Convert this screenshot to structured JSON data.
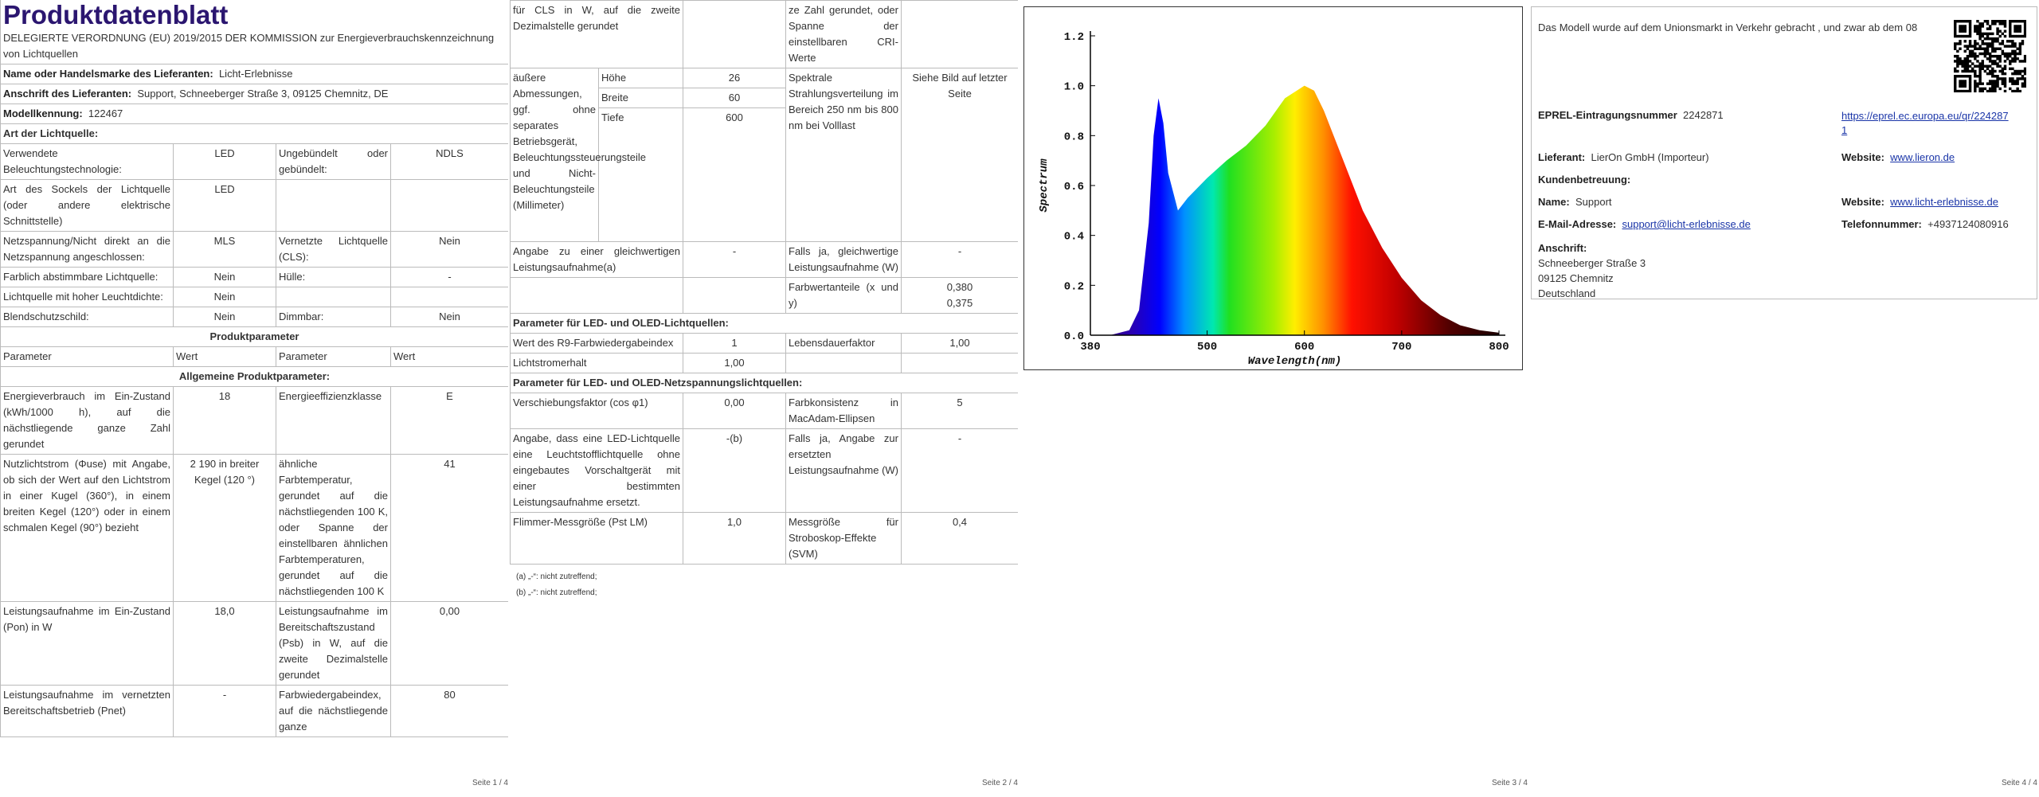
{
  "page1": {
    "title": "Produktdatenblatt",
    "regulation": "DELEGIERTE VERORDNUNG (EU) 2019/2015 DER KOMMISSION zur Energieverbrauchskennzeichnung von Lichtquellen",
    "supplier": {
      "label": "Name oder Handelsmarke des Lieferanten:",
      "value": "Licht-Erlebnisse"
    },
    "address": {
      "label": "Anschrift des Lieferanten:",
      "value": "Support, Schneeberger Straße 3, 09125 Chemnitz, DE"
    },
    "model": {
      "label": "Modellkennung:",
      "value": "122467"
    },
    "source_heading": "Art der Lichtquelle:",
    "source_rows": [
      [
        "Verwendete Beleuchtungstechnologie:",
        "LED",
        "Ungebündelt oder gebündelt:",
        "NDLS"
      ],
      [
        "Art des Sockels der Lichtquelle (oder andere elektrische Schnittstelle)",
        "LED",
        null,
        null
      ],
      [
        "Netzspannung/Nicht direkt an die Netzspannung angeschlossen:",
        "MLS",
        "Vernetzte Lichtquelle (CLS):",
        "Nein"
      ],
      [
        "Farblich abstimmbare Lichtquelle:",
        "Nein",
        "Hülle:",
        "-"
      ],
      [
        "Lichtquelle mit hoher Leuchtdichte:",
        "Nein",
        null,
        null
      ],
      [
        "Blendschutzschild:",
        "Nein",
        "Dimmbar:",
        "Nein"
      ]
    ],
    "params_heading": "Produktparameter",
    "header": [
      "Parameter",
      "Wert",
      "Parameter",
      "Wert"
    ],
    "general_heading": "Allgemeine Produktparameter:",
    "general_rows": [
      [
        "Energieverbrauch im Ein-Zustand (kWh/1000 h), auf die nächstliegende ganze Zahl gerundet",
        "18",
        "Energieeffizienzklasse",
        "E"
      ],
      [
        "Nutzlichtstrom (Φuse) mit Angabe, ob sich der Wert auf den Lichtstrom in einer Kugel (360°), in einem breiten Kegel (120°) oder in einem schmalen Kegel (90°) bezieht",
        "2 190 in breiter Kegel (120 °)",
        "ähnliche Farbtemperatur, gerundet auf die nächstliegenden 100 K, oder Spanne der einstellbaren ähnlichen Farbtemperaturen, gerundet auf die nächstliegenden 100 K",
        "41"
      ],
      [
        "Leistungsaufnahme im Ein-Zustand (Pon) in W",
        "18,0",
        "Leistungsaufnahme im Bereitschaftszustand (Psb) in W, auf die zweite Dezimalstelle gerundet",
        "0,00"
      ],
      [
        "Leistungsaufnahme im vernetzten Bereitschaftsbetrieb (Pnet)",
        "-",
        "Farbwiedergabeindex, auf die nächstliegende ganze",
        "80"
      ]
    ],
    "page_number": "Seite 1 / 4"
  },
  "page2": {
    "top_row": [
      "für CLS in W, auf die zweite Dezimalstelle gerundet",
      null,
      "ze Zahl gerundet, oder Spanne der einstellbaren CRI-Werte",
      null
    ],
    "dimensions": {
      "label": "äußere Abmessungen, ggf. ohne separates Betriebsgerät, Beleuchtungssteuerungsteile und Nicht-Beleuchtungsteile (Millimeter)",
      "rows": [
        [
          "Höhe",
          "26"
        ],
        [
          "Breite",
          "60"
        ],
        [
          "Tiefe",
          "600"
        ]
      ],
      "spectrum_label": "Spektrale Strahlungsverteilung im Bereich 250 nm bis 800 nm bei Volllast",
      "spectrum_value": "Siehe Bild auf letzter Seite"
    },
    "rows": [
      [
        "Angabe zu einer gleichwertigen Leistungsaufnahme(a)",
        "-",
        "Falls ja, gleichwertige Leistungsaufnahme (W)",
        "-"
      ],
      [
        null,
        null,
        "Farbwertanteile (x und y)",
        "0,380\n0,375"
      ]
    ],
    "led_heading": "Parameter für LED- und OLED-Lichtquellen:",
    "led_rows": [
      [
        "Wert des R9-Farbwiedergabeindex",
        "1",
        "Lebensdauerfaktor",
        "1,00"
      ],
      [
        "Lichtstromerhalt",
        "1,00",
        null,
        null
      ]
    ],
    "mains_heading": "Parameter für LED- und OLED-Netzspannungslichtquellen:",
    "mains_rows": [
      [
        "Verschiebungsfaktor (cos φ1)",
        "0,00",
        "Farbkonsistenz in MacAdam-Ellipsen",
        "5"
      ],
      [
        "Angabe, dass eine LED-Lichtquelle eine Leuchtstofflichtquelle ohne eingebautes Vorschaltgerät mit einer bestimmten Leistungsaufnahme ersetzt.",
        "-(b)",
        "Falls ja, Angabe zur ersetzten Leistungsaufnahme (W)",
        "-"
      ],
      [
        "Flimmer-Messgröße (Pst LM)",
        "1,0",
        "Messgröße für Stroboskop-Effekte (SVM)",
        "0,4"
      ]
    ],
    "footnotes": [
      "(a) „-“: nicht zutreffend;",
      "(b) „-“: nicht zutreffend;"
    ],
    "page_number": "Seite 2 / 4"
  },
  "page3": {
    "chart_data": {
      "type": "area",
      "xlabel": "Wavelength(nm)",
      "ylabel": "Spectrum",
      "x": [
        400,
        420,
        430,
        440,
        445,
        450,
        455,
        460,
        470,
        480,
        500,
        520,
        540,
        560,
        580,
        600,
        610,
        620,
        640,
        660,
        680,
        700,
        720,
        740,
        760,
        780,
        800
      ],
      "values": [
        0,
        0.02,
        0.1,
        0.45,
        0.8,
        0.95,
        0.85,
        0.65,
        0.5,
        0.55,
        0.63,
        0.7,
        0.76,
        0.84,
        0.95,
        1.0,
        0.98,
        0.9,
        0.7,
        0.5,
        0.35,
        0.23,
        0.14,
        0.08,
        0.04,
        0.02,
        0.01
      ],
      "xlim": [
        380,
        800
      ],
      "ylim": [
        0,
        1.2
      ],
      "xticks": [
        380,
        500,
        600,
        700,
        800
      ],
      "yticks": [
        {
          "value": 0,
          "label": "0.0"
        },
        0.2,
        0.4,
        0.6,
        0.8,
        {
          "value": 1,
          "label": "1.0"
        },
        1.2
      ]
    },
    "page_number": "Seite 3 / 4"
  },
  "page4": {
    "intro": "Das Modell wurde auf dem Unionsmarkt in Verkehr gebracht , und zwar ab dem 08",
    "eprel": {
      "label": "EPREL-Eintragungsnummer",
      "value": "2242871",
      "link": "https://eprel.ec.europa.eu/qr/2242871"
    },
    "supplier": {
      "label": "Lieferant:",
      "value": "LierOn GmbH (Importeur)",
      "website_label": "Website:",
      "website": "www.lieron.de"
    },
    "service_heading": "Kundenbetreuung:",
    "name": {
      "label": "Name:",
      "value": "Support",
      "website_label": "Website:",
      "website": "www.licht-erlebnisse.de"
    },
    "email": {
      "label": "E-Mail-Adresse:",
      "value": "support@licht-erlebnisse.de",
      "phone_label": "Telefonnummer:",
      "phone": "+4937124080916"
    },
    "address": {
      "label": "Anschrift:",
      "lines": [
        "Schneeberger Straße 3",
        "09125 Chemnitz",
        "Deutschland"
      ]
    },
    "page_number": "Seite 4 / 4"
  }
}
